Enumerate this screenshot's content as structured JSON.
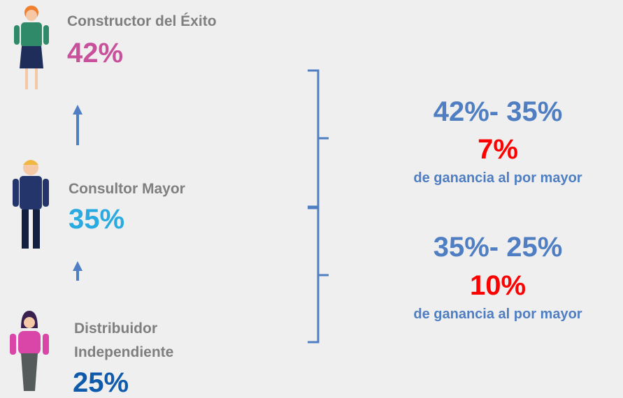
{
  "levels": [
    {
      "name": "Constructor del Éxito",
      "rate": "42%"
    },
    {
      "name": "Consultor Mayor",
      "rate": "35%"
    },
    {
      "name_lines": [
        "Distribuidor",
        "Independiente"
      ],
      "rate": "25%"
    }
  ],
  "differences": [
    {
      "formula": "42%- 35%",
      "result": "7%",
      "caption": "de ganancia al por mayor"
    },
    {
      "formula": "35%- 25%",
      "result": "10%",
      "caption": "de ganancia al por mayor"
    }
  ]
}
